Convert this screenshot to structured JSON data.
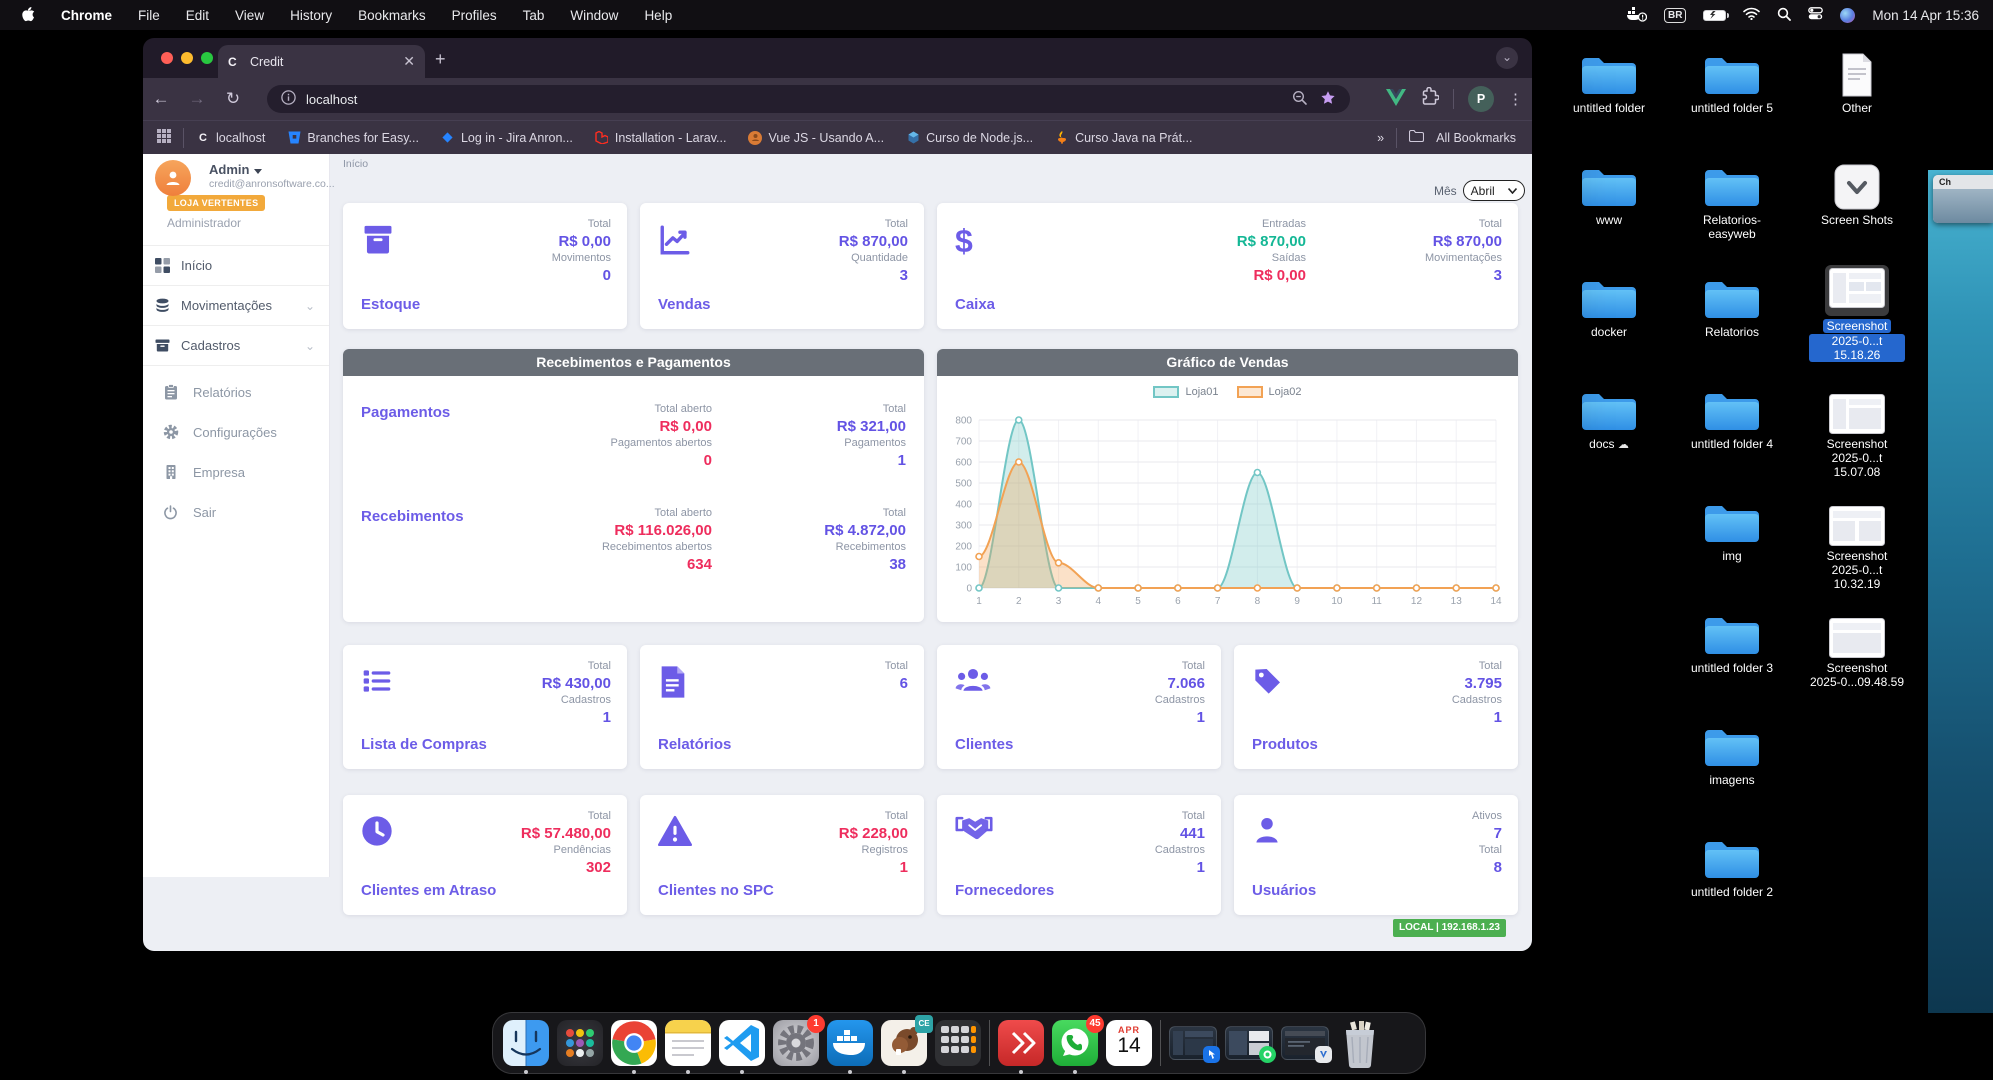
{
  "menu_bar": {
    "app_name": "Chrome",
    "menus": [
      "File",
      "Edit",
      "View",
      "History",
      "Bookmarks",
      "Profiles",
      "Tab",
      "Window",
      "Help"
    ],
    "status": {
      "keyboard": "BR",
      "clock": "Mon 14 Apr 15:36"
    }
  },
  "browser": {
    "tab_title": "Credit",
    "tab_favicon": "C",
    "url": "localhost",
    "profile_initial": "P",
    "overflow_chevron": "»",
    "bookmarks": [
      "localhost",
      "Branches for Easy...",
      "Log in - Jira Anron...",
      "Installation - Larav...",
      "Vue JS - Usando A...",
      "Curso de Node.js...",
      "Curso Java na Prát..."
    ],
    "all_bookmarks": "All Bookmarks"
  },
  "app": {
    "user": {
      "name": "Admin",
      "email": "credit@anronsoftware.co...",
      "store": "LOJA VERTENTES",
      "role": "Administrador"
    },
    "nav": [
      "Início",
      "Movimentações",
      "Cadastros",
      "Relatórios",
      "Configurações",
      "Empresa",
      "Sair"
    ],
    "breadcrumb": "Início",
    "month_label": "Mês",
    "month_value": "Abril",
    "cards_top": [
      {
        "title": "Estoque",
        "rows": [
          {
            "label": "Total",
            "value": "R$ 0,00"
          },
          {
            "label": "Movimentos",
            "value": "0"
          }
        ]
      },
      {
        "title": "Vendas",
        "rows": [
          {
            "label": "Total",
            "value": "R$ 870,00"
          },
          {
            "label": "Quantidade",
            "value": "3"
          }
        ]
      }
    ],
    "caixa": {
      "title": "Caixa",
      "currency": "$",
      "flow": [
        {
          "label": "Entradas",
          "value": "R$ 870,00"
        },
        {
          "label": "Saídas",
          "value": "R$ 0,00"
        }
      ],
      "totals": [
        {
          "label": "Total",
          "value": "R$ 870,00"
        },
        {
          "label": "Movimentações",
          "value": "3"
        }
      ]
    },
    "payments": {
      "header": "Recebimentos e Pagamentos",
      "rows": [
        {
          "title": "Pagamentos",
          "open_label": "Total aberto",
          "open_value": "R$ 0,00",
          "open_count_label": "Pagamentos abertos",
          "open_count": "0",
          "total_label": "Total",
          "total_value": "R$ 321,00",
          "count_label": "Pagamentos",
          "count": "1"
        },
        {
          "title": "Recebimentos",
          "open_label": "Total aberto",
          "open_value": "R$ 116.026,00",
          "open_count_label": "Recebimentos abertos",
          "open_count": "634",
          "total_label": "Total",
          "total_value": "R$ 4.872,00",
          "count_label": "Recebimentos",
          "count": "38"
        }
      ]
    },
    "chart_header": "Gráfico de Vendas",
    "cards_mid": [
      {
        "title": "Lista de Compras",
        "rows": [
          {
            "label": "Total",
            "value": "R$ 430,00"
          },
          {
            "label": "Cadastros",
            "value": "1"
          }
        ]
      },
      {
        "title": "Relatórios",
        "rows": [
          {
            "label": "Total",
            "value": "6"
          }
        ]
      },
      {
        "title": "Clientes",
        "rows": [
          {
            "label": "Total",
            "value": "7.066"
          },
          {
            "label": "Cadastros",
            "value": "1"
          }
        ]
      },
      {
        "title": "Produtos",
        "rows": [
          {
            "label": "Total",
            "value": "3.795"
          },
          {
            "label": "Cadastros",
            "value": "1"
          }
        ]
      }
    ],
    "cards_bottom": [
      {
        "title": "Clientes em Atraso",
        "rows": [
          {
            "label": "Total",
            "value": "R$ 57.480,00"
          },
          {
            "label": "Pendências",
            "value": "302"
          }
        ]
      },
      {
        "title": "Clientes no SPC",
        "rows": [
          {
            "label": "Total",
            "value": "R$ 228,00"
          },
          {
            "label": "Registros",
            "value": "1"
          }
        ]
      },
      {
        "title": "Fornecedores",
        "rows": [
          {
            "label": "Total",
            "value": "441"
          },
          {
            "label": "Cadastros",
            "value": "1"
          }
        ]
      },
      {
        "title": "Usuários",
        "rows": [
          {
            "label": "Ativos",
            "value": "7"
          },
          {
            "label": "Total",
            "value": "8"
          }
        ]
      }
    ],
    "status_badge": "LOCAL | 192.168.1.23",
    "colors": {
      "accent": "#6c5ce7",
      "negative": "#ee2d5d",
      "positive": "#14b795",
      "header_gray": "#696f77",
      "status_green": "#4caf50"
    }
  },
  "chart_data": {
    "type": "area",
    "title": "Gráfico de Vendas",
    "x": [
      1,
      2,
      3,
      4,
      5,
      6,
      7,
      8,
      9,
      10,
      11,
      12,
      13,
      14
    ],
    "series": [
      {
        "name": "Loja01",
        "color": "#72c6c5",
        "values": [
          0,
          800,
          0,
          0,
          0,
          0,
          0,
          550,
          0,
          0,
          0,
          0,
          0,
          0
        ]
      },
      {
        "name": "Loja02",
        "color": "#f2a254",
        "values": [
          150,
          600,
          120,
          0,
          0,
          0,
          0,
          0,
          0,
          0,
          0,
          0,
          0,
          0
        ]
      }
    ],
    "ylim": [
      0,
      800
    ],
    "ytick": 100,
    "grid": true,
    "legend_position": "top"
  },
  "desktop": {
    "items": [
      {
        "label": "untitled folder"
      },
      {
        "label": "untitled folder 5"
      },
      {
        "label": "Other"
      },
      {
        "label": "www"
      },
      {
        "label": "Relatorios-",
        "label2": "easyweb"
      },
      {
        "label": "Screen Shots"
      },
      {
        "label": "docker"
      },
      {
        "label": "Relatorios"
      },
      {
        "label": "Screenshot",
        "label2": "2025-0...t 15.18.26"
      },
      {
        "label": "docs"
      },
      {
        "label": "untitled folder 4"
      },
      {
        "label": "Screenshot",
        "label2": "2025-0...t 15.07.08"
      },
      {
        "label": "img"
      },
      {
        "label": "Screenshot",
        "label2": "2025-0...t 10.32.19"
      },
      {
        "label": "untitled folder 3"
      },
      {
        "label": "Screenshot",
        "label2": "2025-0...09.48.59"
      },
      {
        "label": "imagens"
      },
      {
        "label": "untitled folder 2"
      }
    ],
    "fragment": "Ch"
  },
  "dock": {
    "settings_badge": "1",
    "dbeaver_badge": "CE",
    "whatsapp_badge": "45",
    "calendar_month": "APR",
    "calendar_day": "14"
  }
}
